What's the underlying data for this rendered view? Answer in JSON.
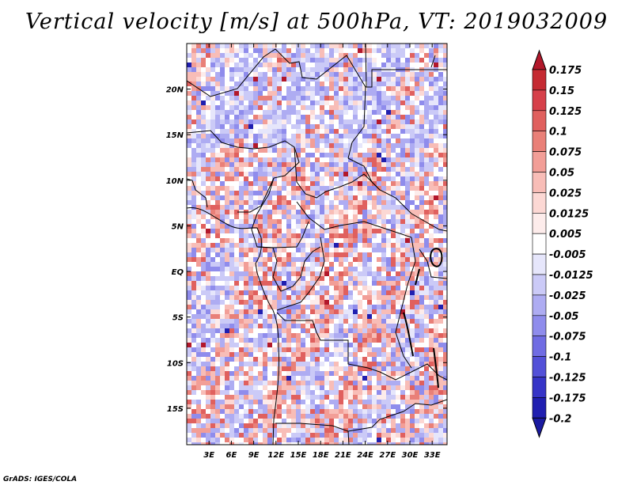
{
  "title": "Vertical velocity [m/s] at 500hPa, VT: 2019032009",
  "credit": "GrADS: IGES/COLA",
  "map": {
    "region": "Central Africa",
    "lon_range": [
      0,
      35
    ],
    "lat_range": [
      -19,
      25
    ],
    "lat_ticks": [
      {
        "value": 20,
        "label": "20N"
      },
      {
        "value": 15,
        "label": "15N"
      },
      {
        "value": 10,
        "label": "10N"
      },
      {
        "value": 5,
        "label": "5N"
      },
      {
        "value": 0,
        "label": "EQ"
      },
      {
        "value": -5,
        "label": "5S"
      },
      {
        "value": -10,
        "label": "10S"
      },
      {
        "value": -15,
        "label": "15S"
      }
    ],
    "lon_ticks": [
      {
        "value": 3,
        "label": "3E"
      },
      {
        "value": 6,
        "label": "6E"
      },
      {
        "value": 9,
        "label": "9E"
      },
      {
        "value": 12,
        "label": "12E"
      },
      {
        "value": 15,
        "label": "15E"
      },
      {
        "value": 18,
        "label": "18E"
      },
      {
        "value": 21,
        "label": "21E"
      },
      {
        "value": 24,
        "label": "24E"
      },
      {
        "value": 27,
        "label": "27E"
      },
      {
        "value": 30,
        "label": "30E"
      },
      {
        "value": 33,
        "label": "33E"
      }
    ]
  },
  "colorbar": {
    "levels": [
      {
        "label": "0.175",
        "color": "#b2182b"
      },
      {
        "label": "0.15",
        "color": "#c52a32"
      },
      {
        "label": "0.125",
        "color": "#d6404a"
      },
      {
        "label": "0.1",
        "color": "#e0605e"
      },
      {
        "label": "0.075",
        "color": "#e98078"
      },
      {
        "label": "0.05",
        "color": "#f29e97"
      },
      {
        "label": "0.025",
        "color": "#f8bdb7"
      },
      {
        "label": "0.0125",
        "color": "#fcd8d4"
      },
      {
        "label": "0.005",
        "color": "#fdeceb"
      },
      {
        "label": "-0.005",
        "color": "#ffffff"
      },
      {
        "label": "-0.0125",
        "color": "#e6e6fb"
      },
      {
        "label": "-0.025",
        "color": "#cbcaf7"
      },
      {
        "label": "-0.05",
        "color": "#aeacf2"
      },
      {
        "label": "-0.075",
        "color": "#8f8cec"
      },
      {
        "label": "-0.1",
        "color": "#706ce3"
      },
      {
        "label": "-0.125",
        "color": "#5350d8"
      },
      {
        "label": "-0.175",
        "color": "#3634c7"
      },
      {
        "label": "-0.2",
        "color": "#201fb0"
      }
    ],
    "bottom_color": "#1a1aa0"
  }
}
